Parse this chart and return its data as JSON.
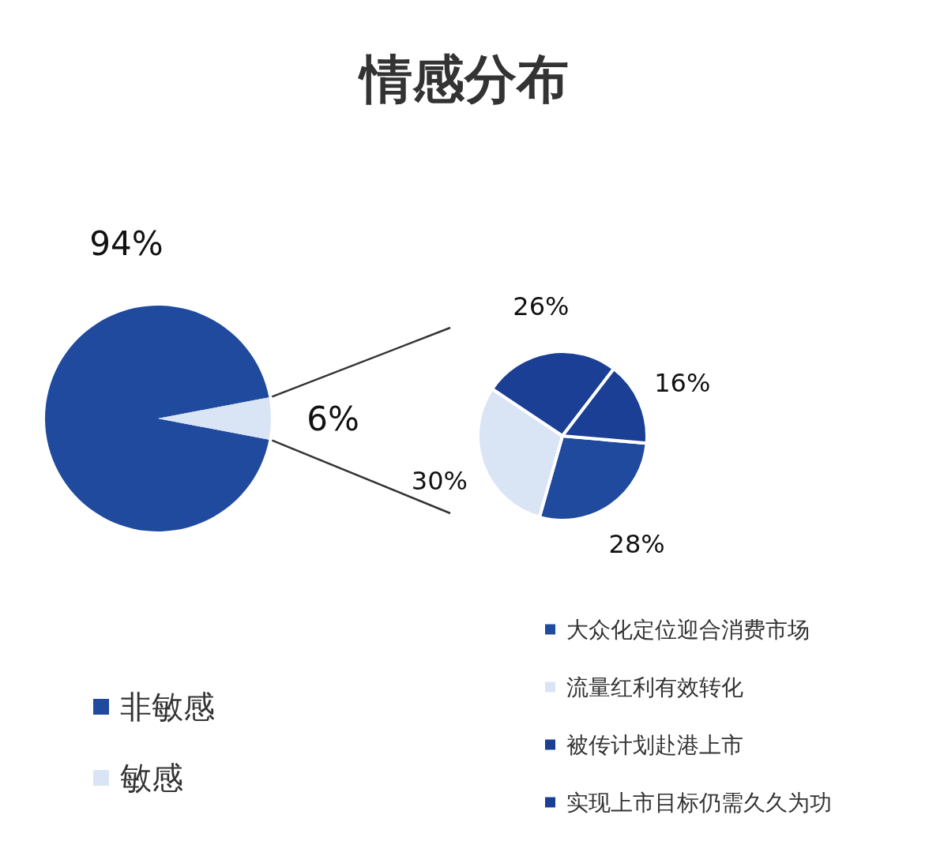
{
  "chart_data": [
    {
      "type": "pie",
      "title": "情感分布",
      "categories": [
        "非敏感",
        "敏感"
      ],
      "values": [
        94,
        6
      ],
      "value_labels": [
        "94%",
        "6%"
      ],
      "colors": [
        "#1f4a9e",
        "#d9e4f5"
      ],
      "legend": "bottom left"
    },
    {
      "type": "pie",
      "categories": [
        "大众化定位迎合消费市场",
        "流量红利有效转化",
        "被传计划赴港上市",
        "实现上市目标仍需久久为功"
      ],
      "values": [
        28,
        30,
        26,
        16
      ],
      "value_labels": [
        "28%",
        "30%",
        "26%",
        "16%"
      ],
      "colors": [
        "#1f4a9e",
        "#d9e4f5",
        "#1a3f94",
        "#1a3f94"
      ],
      "legend": "bottom"
    }
  ]
}
